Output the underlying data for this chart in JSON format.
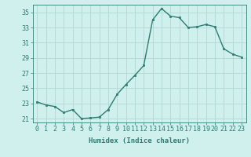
{
  "x": [
    0,
    1,
    2,
    3,
    4,
    5,
    6,
    7,
    8,
    9,
    10,
    11,
    12,
    13,
    14,
    15,
    16,
    17,
    18,
    19,
    20,
    21,
    22,
    23
  ],
  "y": [
    23.2,
    22.8,
    22.6,
    21.8,
    22.2,
    21.0,
    21.1,
    21.2,
    22.2,
    24.2,
    25.5,
    26.7,
    28.0,
    34.0,
    35.5,
    34.5,
    34.3,
    33.0,
    33.1,
    33.4,
    33.1,
    30.2,
    29.5,
    29.1
  ],
  "line_color": "#2e7d6e",
  "marker": "s",
  "marker_size": 2.0,
  "line_width": 1.0,
  "bg_color": "#cff0ec",
  "grid_color": "#b0d8d4",
  "xlabel": "Humidex (Indice chaleur)",
  "xlim": [
    -0.5,
    23.5
  ],
  "ylim": [
    20.5,
    36.0
  ],
  "yticks": [
    21,
    23,
    25,
    27,
    29,
    31,
    33,
    35
  ],
  "xticks": [
    0,
    1,
    2,
    3,
    4,
    5,
    6,
    7,
    8,
    9,
    10,
    11,
    12,
    13,
    14,
    15,
    16,
    17,
    18,
    19,
    20,
    21,
    22,
    23
  ],
  "tick_color": "#2e7d6e",
  "label_fontsize": 6.5,
  "tick_fontsize": 6.0
}
